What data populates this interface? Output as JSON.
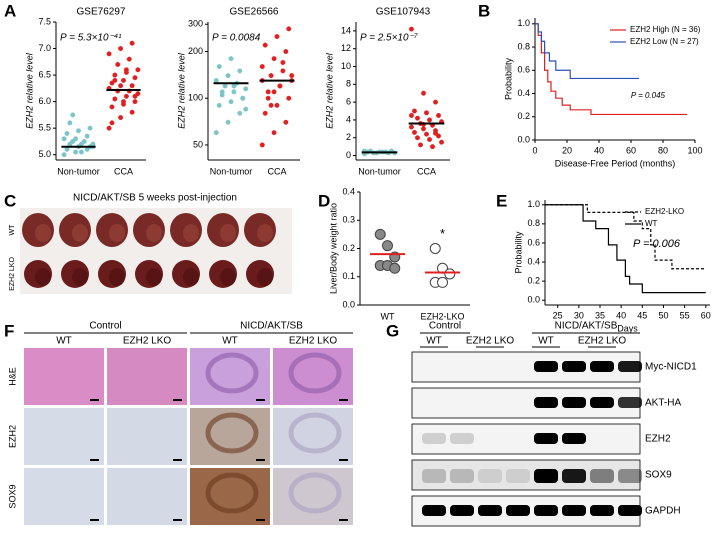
{
  "panel_letters": [
    "A",
    "B",
    "C",
    "D",
    "E",
    "F",
    "G"
  ],
  "panel_c": {
    "title": "NICD/AKT/SB 5 weeks post-injection",
    "rows": [
      "WT",
      "EZH2 LKO"
    ]
  },
  "panel_f": {
    "groups": [
      "Control",
      "NICD/AKT/SB"
    ],
    "columns": [
      "WT",
      "EZH2 LKO",
      "WT",
      "EZH2 LKO"
    ],
    "rows": [
      "H&E",
      "EZH2",
      "SOX9"
    ]
  },
  "panel_g": {
    "groups": [
      "Control",
      "NICD/AKT/SB"
    ],
    "columns": [
      "WT",
      "EZH2 LKO",
      "WT",
      "EZH2 LKO"
    ],
    "bands": [
      "Myc-NICD1",
      "AKT-HA",
      "EZH2",
      "SOX9",
      "GAPDH"
    ]
  },
  "chart_data": [
    {
      "type": "strip",
      "title": "GSE76297",
      "ylabel": "EZH2 relative level",
      "annotation": "P = 5.3×10⁻⁴¹",
      "categories": [
        "Non-tumor",
        "CCA"
      ],
      "mean_color": "#000000",
      "groups": [
        {
          "color": "#7cc4c8",
          "stroke": "#7cc4c8",
          "mean": 5.15,
          "values": [
            5.0,
            5.05,
            5.1,
            5.1,
            5.15,
            5.15,
            5.2,
            5.2,
            5.2,
            5.25,
            5.25,
            5.3,
            5.3,
            5.35,
            5.4,
            5.45,
            5.5,
            5.6,
            5.05,
            5.15,
            5.75
          ]
        },
        {
          "color": "#e02020",
          "stroke": "#e02020",
          "mean": 6.22,
          "values": [
            5.5,
            5.7,
            5.8,
            5.9,
            5.95,
            6.0,
            6.05,
            6.1,
            6.15,
            6.2,
            6.2,
            6.25,
            6.3,
            6.3,
            6.35,
            6.4,
            6.45,
            6.5,
            6.55,
            6.6,
            6.7,
            6.8,
            6.9,
            7.0,
            7.1,
            5.6,
            6.0,
            6.1,
            6.4,
            6.6
          ]
        }
      ],
      "ylim": [
        4.9,
        7.5
      ],
      "yticks": [
        {
          "value": 5,
          "label": "5.0"
        },
        5.5,
        {
          "value": 6,
          "label": "6.0"
        },
        6.5,
        {
          "value": 7,
          "label": "7.0"
        },
        7.5
      ]
    },
    {
      "type": "strip",
      "title": "GSE26566",
      "ylabel": "EZH2 relative level",
      "annotation": "P = 0.0084",
      "categories": [
        "Non-tumor",
        "CCA"
      ],
      "mean_color": "#000000",
      "log": true,
      "groups": [
        {
          "color": "#7cc4c8",
          "stroke": "#7cc4c8",
          "mean": 125,
          "values": [
            60,
            70,
            80,
            90,
            95,
            100,
            105,
            110,
            115,
            120,
            125,
            130,
            140,
            150,
            160,
            180,
            100,
            110,
            120,
            85
          ]
        },
        {
          "color": "#e02020",
          "stroke": "#e02020",
          "mean": 130,
          "values": [
            50,
            60,
            70,
            80,
            90,
            100,
            110,
            120,
            130,
            140,
            150,
            160,
            180,
            200,
            220,
            250,
            280,
            100,
            120,
            140,
            90,
            170,
            130,
            110
          ]
        }
      ],
      "ylim": [
        40,
        310
      ],
      "yticks": [
        50,
        100,
        200,
        300
      ]
    },
    {
      "type": "strip",
      "title": "GSE107943",
      "ylabel": "EZH2 relative level",
      "annotation": "P = 2.5×10⁻⁷",
      "categories": [
        "Non-tumor",
        "CCA"
      ],
      "mean_color": "#000000",
      "groups": [
        {
          "color": "#7cc4c8",
          "stroke": "#7cc4c8",
          "mean": 0.35,
          "values": [
            0.2,
            0.3,
            0.3,
            0.4,
            0.4,
            0.5,
            0.5,
            0.4,
            0.3,
            0.3,
            0.4,
            0.5
          ]
        },
        {
          "color": "#e02020",
          "stroke": "#e02020",
          "mean": 3.6,
          "values": [
            14.2,
            7,
            6,
            5,
            4.8,
            4.5,
            4.2,
            4,
            3.8,
            3.6,
            3.4,
            3.2,
            3,
            2.8,
            2.6,
            2.4,
            2.2,
            2,
            1.8,
            1.5,
            1.2,
            1,
            4.5,
            3.5,
            2.5
          ]
        }
      ],
      "ylim": [
        -0.5,
        15
      ],
      "yticks": [
        0,
        2,
        4,
        6,
        8,
        10,
        12,
        14
      ]
    },
    {
      "type": "step",
      "ylabel": "Probability",
      "xlabel": "Disease-Free Period (months)",
      "annotation": "P = 0.045",
      "legend": "top-right",
      "series": [
        {
          "name": "EZH2 High (N = 36)",
          "color": "#e02020",
          "x": [
            0,
            2,
            2,
            4,
            4,
            6,
            6,
            8,
            8,
            10,
            10,
            13,
            13,
            17,
            17,
            22,
            22,
            35,
            35,
            95
          ],
          "values": [
            1,
            1,
            0.9,
            0.9,
            0.75,
            0.75,
            0.6,
            0.6,
            0.5,
            0.5,
            0.42,
            0.42,
            0.36,
            0.36,
            0.3,
            0.3,
            0.26,
            0.26,
            0.22,
            0.22
          ]
        },
        {
          "name": "EZH2 Low (N = 27)",
          "color": "#2a4fbf",
          "x": [
            0,
            2,
            2,
            4,
            4,
            6,
            6,
            9,
            9,
            13,
            13,
            22,
            22,
            65
          ],
          "values": [
            1,
            1,
            0.93,
            0.93,
            0.85,
            0.85,
            0.75,
            0.75,
            0.68,
            0.68,
            0.6,
            0.6,
            0.53,
            0.53
          ]
        }
      ],
      "xlim": [
        0,
        100
      ],
      "xticks": [
        0,
        20,
        40,
        60,
        80,
        100
      ],
      "ylim": [
        0,
        1.05
      ],
      "yticks": [
        {
          "value": 0,
          "label": "0.0"
        },
        0.2,
        0.4,
        0.6,
        0.8,
        {
          "value": 1,
          "label": "1.0"
        }
      ]
    },
    {
      "type": "strip",
      "ylabel": "Liver/Body weight ratio",
      "annotation": "*",
      "categories": [
        "WT",
        "EZH2-LKO"
      ],
      "mean_color": "#e02020",
      "groups": [
        {
          "color": "#888888",
          "stroke": "#444444",
          "mean": 0.18,
          "values": [
            0.25,
            0.21,
            0.17,
            0.14,
            0.14,
            0.13
          ]
        },
        {
          "color": "#ffffff",
          "stroke": "#444444",
          "mean": 0.115,
          "values": [
            0.2,
            0.13,
            0.11,
            0.08,
            0.08
          ]
        }
      ],
      "ylim": [
        0,
        0.4
      ],
      "yticks": [
        {
          "value": 0,
          "label": "0.0"
        },
        0.1,
        0.2,
        0.3,
        0.4
      ]
    },
    {
      "type": "step",
      "ylabel": "Probability",
      "xlabel": "Days",
      "annotation": "P = 0.006",
      "legend": "top-right",
      "series": [
        {
          "name": "EZH2-LKO",
          "color": "#000000",
          "dash": true,
          "x": [
            22,
            32,
            32,
            43,
            43,
            45,
            45,
            47,
            47,
            48,
            48,
            52,
            52,
            60
          ],
          "values": [
            1,
            1,
            0.92,
            0.92,
            0.83,
            0.83,
            0.75,
            0.75,
            0.58,
            0.58,
            0.42,
            0.42,
            0.33,
            0.33
          ]
        },
        {
          "name": "WT",
          "color": "#000000",
          "x": [
            22,
            31,
            31,
            34,
            34,
            37,
            37,
            39,
            39,
            41,
            41,
            42,
            42,
            45,
            45,
            60
          ],
          "values": [
            1,
            1,
            0.83,
            0.83,
            0.75,
            0.75,
            0.58,
            0.58,
            0.42,
            0.42,
            0.25,
            0.25,
            0.17,
            0.17,
            0.08,
            0.08
          ]
        }
      ],
      "xlim": [
        22,
        61
      ],
      "xticks": [
        25,
        30,
        35,
        40,
        45,
        50,
        55,
        60
      ],
      "ylim": [
        -0.05,
        1.05
      ],
      "yticks": [
        {
          "value": 0,
          "label": "0.0"
        },
        0.2,
        0.4,
        0.6,
        0.8,
        {
          "value": 1,
          "label": "1.0"
        }
      ]
    }
  ]
}
